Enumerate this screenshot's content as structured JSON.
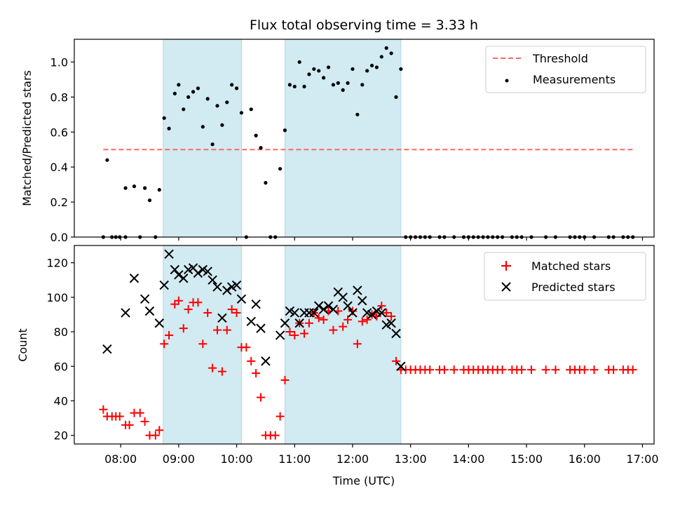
{
  "chart_data": [
    {
      "type": "scatter",
      "title": "Flux total observing time = 3.33 h",
      "xlabel": "",
      "ylabel": "Matched/Predicted stars",
      "ylim": [
        0,
        1.13
      ],
      "yticks": [
        "0.0",
        "0.2",
        "0.4",
        "0.6",
        "0.8",
        "1.0"
      ],
      "xlim": [
        "07:12",
        "17:12"
      ],
      "shaded_intervals": [
        [
          "08:44",
          "10:05"
        ],
        [
          "10:50",
          "12:50"
        ]
      ],
      "shade_color": "#add8e6",
      "threshold": {
        "name": "Threshold",
        "value": 0.5,
        "x_start": "07:42",
        "x_end": "16:52",
        "color": "#ff6666"
      },
      "legend": [
        "Threshold",
        "Measurements"
      ],
      "legend_position": "upper right",
      "series": [
        {
          "name": "Measurements",
          "marker": "dot",
          "color": "#000000",
          "points": [
            [
              "07:42",
              0.0
            ],
            [
              "07:46",
              0.44
            ],
            [
              "07:51",
              0.0
            ],
            [
              "07:55",
              0.0
            ],
            [
              "07:59",
              0.0
            ],
            [
              "08:05",
              0.28
            ],
            [
              "08:05",
              0.0
            ],
            [
              "08:14",
              0.29
            ],
            [
              "08:20",
              0.0
            ],
            [
              "08:25",
              0.28
            ],
            [
              "08:30",
              0.21
            ],
            [
              "08:36",
              0.0
            ],
            [
              "08:40",
              0.27
            ],
            [
              "08:45",
              0.68
            ],
            [
              "08:50",
              0.62
            ],
            [
              "08:56",
              0.82
            ],
            [
              "09:00",
              0.87
            ],
            [
              "09:05",
              0.73
            ],
            [
              "09:10",
              0.8
            ],
            [
              "09:15",
              0.83
            ],
            [
              "09:20",
              0.85
            ],
            [
              "09:25",
              0.63
            ],
            [
              "09:30",
              0.79
            ],
            [
              "09:35",
              0.53
            ],
            [
              "09:40",
              0.75
            ],
            [
              "09:45",
              0.64
            ],
            [
              "09:50",
              0.77
            ],
            [
              "09:55",
              0.87
            ],
            [
              "10:00",
              0.85
            ],
            [
              "10:05",
              0.71
            ],
            [
              "10:10",
              0.0
            ],
            [
              "10:15",
              0.73
            ],
            [
              "10:20",
              0.58
            ],
            [
              "10:25",
              0.51
            ],
            [
              "10:30",
              0.31
            ],
            [
              "10:35",
              0.0
            ],
            [
              "10:40",
              0.0
            ],
            [
              "10:45",
              0.39
            ],
            [
              "10:50",
              0.61
            ],
            [
              "10:55",
              0.87
            ],
            [
              "11:00",
              0.86
            ],
            [
              "11:05",
              1.0
            ],
            [
              "11:10",
              0.86
            ],
            [
              "11:15",
              0.93
            ],
            [
              "11:20",
              0.96
            ],
            [
              "11:25",
              0.95
            ],
            [
              "11:30",
              0.91
            ],
            [
              "11:35",
              0.97
            ],
            [
              "11:40",
              0.87
            ],
            [
              "11:45",
              0.88
            ],
            [
              "11:50",
              0.84
            ],
            [
              "11:55",
              0.88
            ],
            [
              "12:00",
              0.96
            ],
            [
              "12:05",
              0.7
            ],
            [
              "12:10",
              0.87
            ],
            [
              "12:15",
              0.95
            ],
            [
              "12:20",
              0.98
            ],
            [
              "12:25",
              0.97
            ],
            [
              "12:30",
              1.03
            ],
            [
              "12:35",
              1.08
            ],
            [
              "12:40",
              1.05
            ],
            [
              "12:45",
              0.8
            ],
            [
              "12:50",
              0.96
            ],
            [
              "12:55",
              0.0
            ],
            [
              "13:00",
              0.0
            ],
            [
              "13:05",
              0.0
            ],
            [
              "13:10",
              0.0
            ],
            [
              "13:15",
              0.0
            ],
            [
              "13:20",
              0.0
            ],
            [
              "13:30",
              0.0
            ],
            [
              "13:35",
              0.0
            ],
            [
              "13:45",
              0.0
            ],
            [
              "13:55",
              0.0
            ],
            [
              "14:00",
              0.0
            ],
            [
              "14:05",
              0.0
            ],
            [
              "14:10",
              0.0
            ],
            [
              "14:15",
              0.0
            ],
            [
              "14:20",
              0.0
            ],
            [
              "14:25",
              0.0
            ],
            [
              "14:30",
              0.0
            ],
            [
              "14:35",
              0.0
            ],
            [
              "14:45",
              0.0
            ],
            [
              "14:50",
              0.0
            ],
            [
              "14:55",
              0.0
            ],
            [
              "15:05",
              0.0
            ],
            [
              "15:20",
              0.0
            ],
            [
              "15:30",
              0.0
            ],
            [
              "15:45",
              0.0
            ],
            [
              "15:50",
              0.0
            ],
            [
              "15:55",
              0.0
            ],
            [
              "16:00",
              0.0
            ],
            [
              "16:10",
              0.0
            ],
            [
              "16:25",
              0.0
            ],
            [
              "16:30",
              0.0
            ],
            [
              "16:40",
              0.0
            ],
            [
              "16:45",
              0.0
            ],
            [
              "16:50",
              0.0
            ]
          ]
        }
      ]
    },
    {
      "type": "scatter",
      "title": "",
      "xlabel": "Time (UTC)",
      "ylabel": "Count",
      "ylim": [
        15,
        130
      ],
      "yticks": [
        "20",
        "40",
        "60",
        "80",
        "100",
        "120"
      ],
      "xlim": [
        "07:12",
        "17:12"
      ],
      "xticks": [
        "08:00",
        "09:00",
        "10:00",
        "11:00",
        "12:00",
        "13:00",
        "14:00",
        "15:00",
        "16:00",
        "17:00"
      ],
      "shaded_intervals": [
        [
          "08:44",
          "10:05"
        ],
        [
          "10:50",
          "12:50"
        ]
      ],
      "shade_color": "#add8e6",
      "legend": [
        "Matched stars",
        "Predicted stars"
      ],
      "legend_position": "upper right",
      "series": [
        {
          "name": "Matched stars",
          "marker": "plus",
          "color": "#ff0000",
          "points": [
            [
              "07:42",
              35
            ],
            [
              "07:46",
              31
            ],
            [
              "07:51",
              31
            ],
            [
              "07:55",
              31
            ],
            [
              "07:59",
              31
            ],
            [
              "08:05",
              26
            ],
            [
              "08:09",
              26
            ],
            [
              "08:14",
              33
            ],
            [
              "08:20",
              33
            ],
            [
              "08:25",
              28
            ],
            [
              "08:30",
              20
            ],
            [
              "08:36",
              20
            ],
            [
              "08:40",
              23
            ],
            [
              "08:45",
              73
            ],
            [
              "08:50",
              78
            ],
            [
              "08:56",
              96
            ],
            [
              "09:00",
              98
            ],
            [
              "09:05",
              82
            ],
            [
              "09:10",
              93
            ],
            [
              "09:15",
              97
            ],
            [
              "09:20",
              97
            ],
            [
              "09:25",
              73
            ],
            [
              "09:30",
              91
            ],
            [
              "09:35",
              59
            ],
            [
              "09:40",
              81
            ],
            [
              "09:45",
              57
            ],
            [
              "09:50",
              81
            ],
            [
              "09:55",
              93
            ],
            [
              "10:00",
              91
            ],
            [
              "10:05",
              71
            ],
            [
              "10:10",
              71
            ],
            [
              "10:15",
              63
            ],
            [
              "10:20",
              56
            ],
            [
              "10:25",
              42
            ],
            [
              "10:30",
              20
            ],
            [
              "10:35",
              20
            ],
            [
              "10:40",
              20
            ],
            [
              "10:45",
              31
            ],
            [
              "10:50",
              52
            ],
            [
              "10:55",
              80
            ],
            [
              "11:00",
              78
            ],
            [
              "11:05",
              85
            ],
            [
              "11:10",
              79
            ],
            [
              "11:15",
              85
            ],
            [
              "11:20",
              91
            ],
            [
              "11:25",
              88
            ],
            [
              "11:30",
              87
            ],
            [
              "11:35",
              92
            ],
            [
              "11:40",
              81
            ],
            [
              "11:45",
              92
            ],
            [
              "11:50",
              83
            ],
            [
              "11:55",
              87
            ],
            [
              "12:00",
              92
            ],
            [
              "12:05",
              73
            ],
            [
              "12:10",
              86
            ],
            [
              "12:15",
              87
            ],
            [
              "12:20",
              90
            ],
            [
              "12:25",
              89
            ],
            [
              "12:30",
              95
            ],
            [
              "12:35",
              91
            ],
            [
              "12:40",
              89
            ],
            [
              "12:45",
              63
            ],
            [
              "12:50",
              58
            ],
            [
              "12:55",
              58
            ],
            [
              "13:00",
              58
            ],
            [
              "13:05",
              58
            ],
            [
              "13:10",
              58
            ],
            [
              "13:15",
              58
            ],
            [
              "13:20",
              58
            ],
            [
              "13:30",
              58
            ],
            [
              "13:35",
              58
            ],
            [
              "13:45",
              58
            ],
            [
              "13:55",
              58
            ],
            [
              "14:00",
              58
            ],
            [
              "14:05",
              58
            ],
            [
              "14:10",
              58
            ],
            [
              "14:15",
              58
            ],
            [
              "14:20",
              58
            ],
            [
              "14:25",
              58
            ],
            [
              "14:30",
              58
            ],
            [
              "14:35",
              58
            ],
            [
              "14:45",
              58
            ],
            [
              "14:50",
              58
            ],
            [
              "14:55",
              58
            ],
            [
              "15:05",
              58
            ],
            [
              "15:20",
              58
            ],
            [
              "15:30",
              58
            ],
            [
              "15:45",
              58
            ],
            [
              "15:50",
              58
            ],
            [
              "15:55",
              58
            ],
            [
              "16:00",
              58
            ],
            [
              "16:10",
              58
            ],
            [
              "16:25",
              58
            ],
            [
              "16:30",
              58
            ],
            [
              "16:40",
              58
            ],
            [
              "16:45",
              58
            ],
            [
              "16:50",
              58
            ]
          ]
        },
        {
          "name": "Predicted stars",
          "marker": "x",
          "color": "#000000",
          "points": [
            [
              "07:46",
              70
            ],
            [
              "08:05",
              91
            ],
            [
              "08:14",
              111
            ],
            [
              "08:25",
              99
            ],
            [
              "08:30",
              92
            ],
            [
              "08:40",
              85
            ],
            [
              "08:45",
              107
            ],
            [
              "08:50",
              125
            ],
            [
              "08:56",
              116
            ],
            [
              "09:00",
              113
            ],
            [
              "09:05",
              111
            ],
            [
              "09:10",
              116
            ],
            [
              "09:15",
              117
            ],
            [
              "09:20",
              114
            ],
            [
              "09:25",
              116
            ],
            [
              "09:30",
              115
            ],
            [
              "09:35",
              110
            ],
            [
              "09:40",
              106
            ],
            [
              "09:45",
              88
            ],
            [
              "09:50",
              104
            ],
            [
              "09:55",
              106
            ],
            [
              "10:00",
              107
            ],
            [
              "10:05",
              99
            ],
            [
              "10:15",
              86
            ],
            [
              "10:20",
              96
            ],
            [
              "10:25",
              82
            ],
            [
              "10:30",
              63
            ],
            [
              "10:45",
              78
            ],
            [
              "10:50",
              85
            ],
            [
              "10:55",
              92
            ],
            [
              "11:00",
              91
            ],
            [
              "11:05",
              85
            ],
            [
              "11:10",
              91
            ],
            [
              "11:15",
              91
            ],
            [
              "11:20",
              91
            ],
            [
              "11:25",
              95
            ],
            [
              "11:30",
              93
            ],
            [
              "11:35",
              95
            ],
            [
              "11:40",
              93
            ],
            [
              "11:45",
              103
            ],
            [
              "11:50",
              100
            ],
            [
              "11:55",
              95
            ],
            [
              "12:00",
              91
            ],
            [
              "12:05",
              104
            ],
            [
              "12:10",
              98
            ],
            [
              "12:15",
              91
            ],
            [
              "12:20",
              90
            ],
            [
              "12:25",
              92
            ],
            [
              "12:30",
              91
            ],
            [
              "12:35",
              84
            ],
            [
              "12:40",
              85
            ],
            [
              "12:45",
              79
            ],
            [
              "12:50",
              60
            ]
          ]
        }
      ]
    }
  ]
}
